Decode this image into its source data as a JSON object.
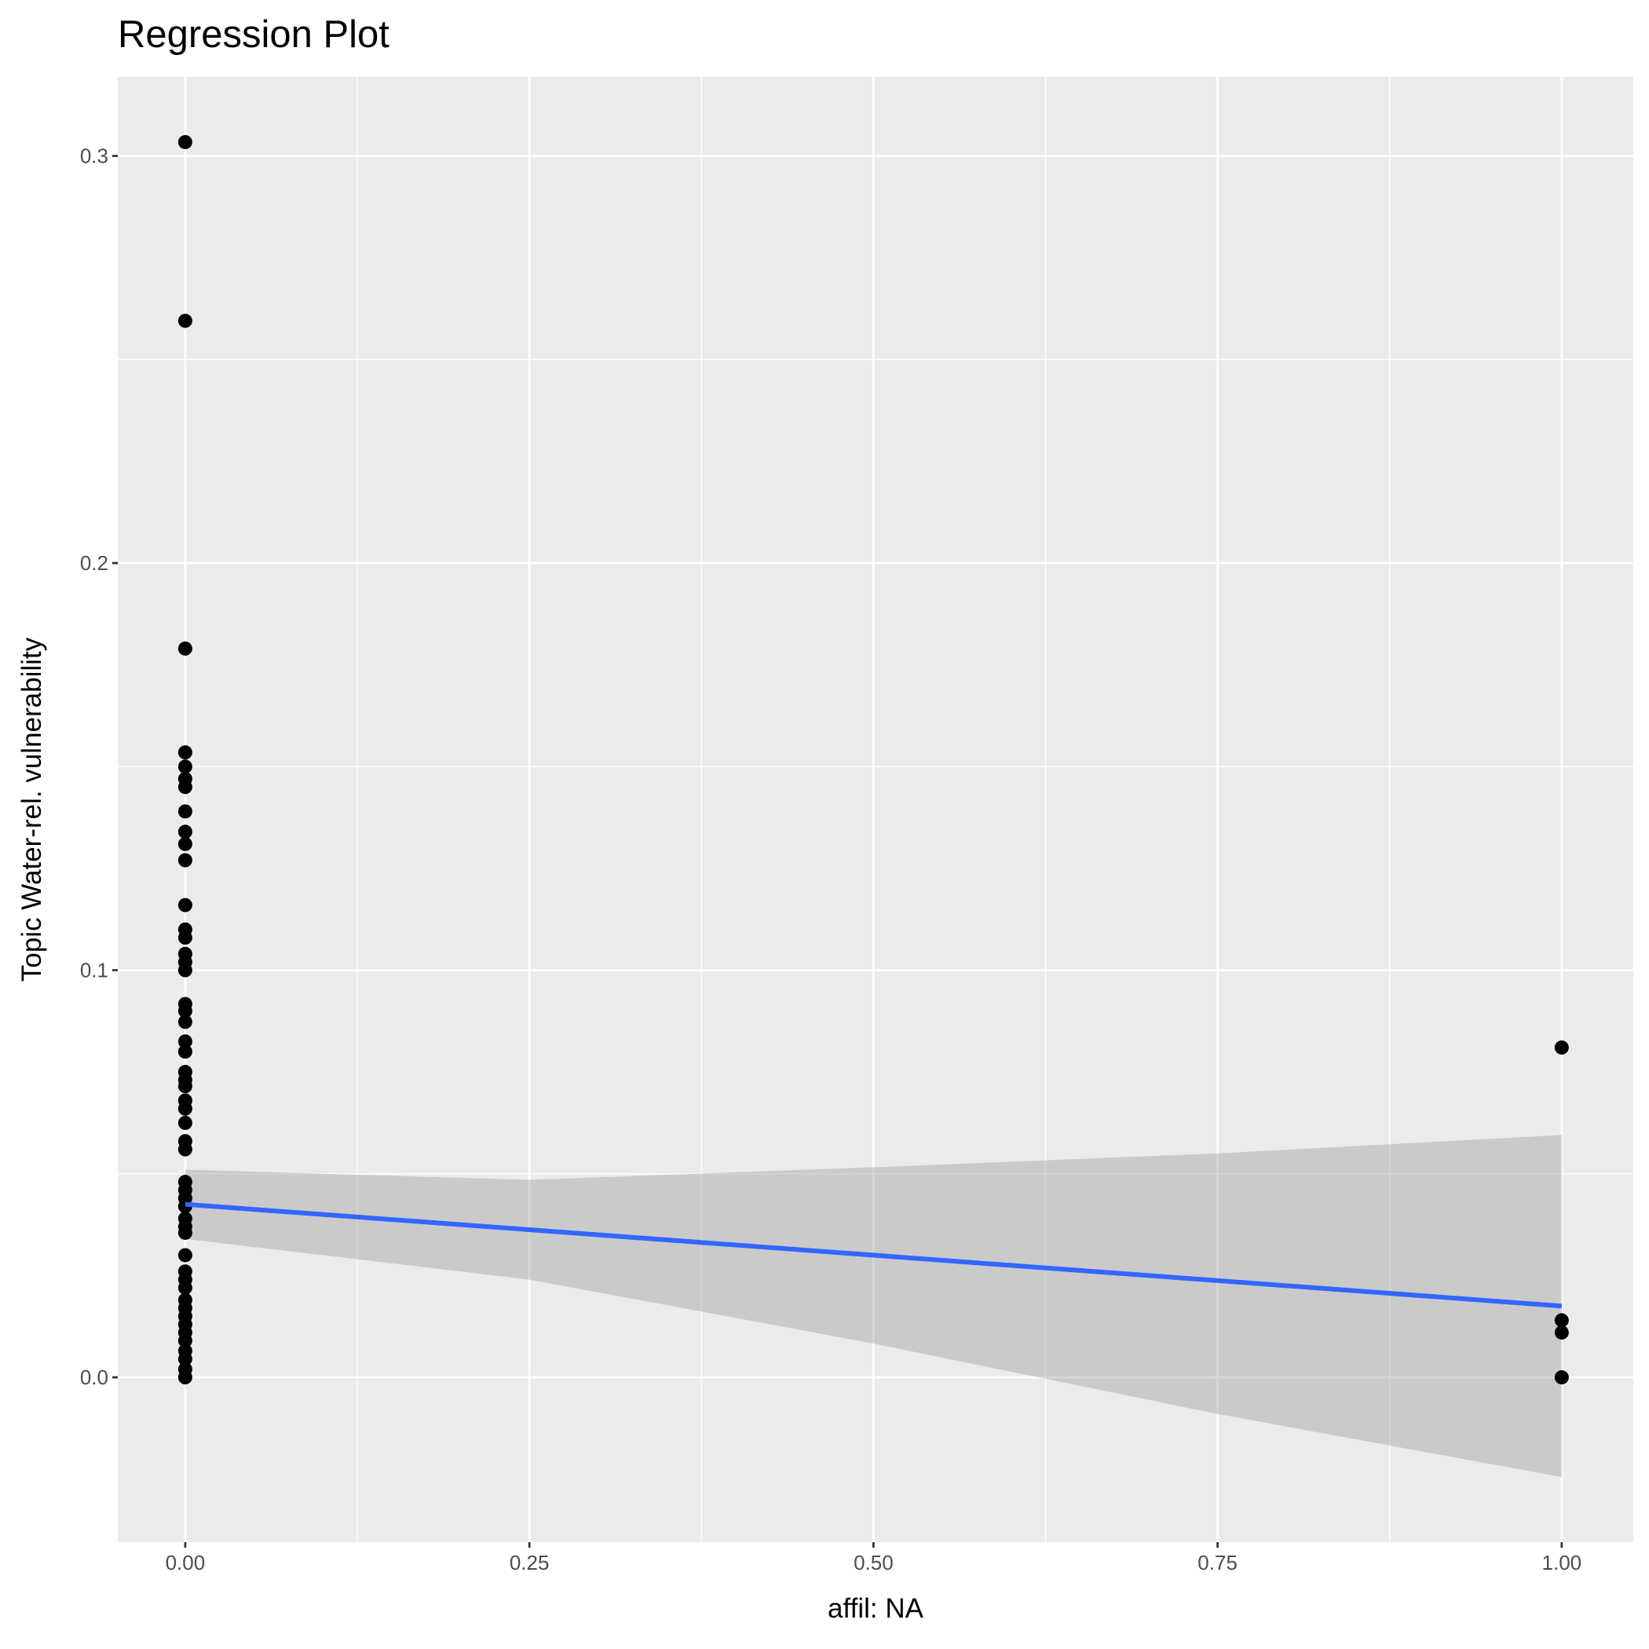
{
  "chart_data": {
    "type": "scatter",
    "title": "Regression Plot",
    "xlabel": "affil: NA",
    "ylabel": "Topic Water-rel. vulnerability",
    "xlim": [
      -0.049,
      1.052
    ],
    "ylim": [
      -0.0405,
      0.3194
    ],
    "x_ticks": [
      0,
      0.25,
      0.5,
      0.75,
      1
    ],
    "x_tick_labels": [
      "0.00",
      "0.25",
      "0.50",
      "0.75",
      "1.00"
    ],
    "y_ticks": [
      0,
      0.1,
      0.2,
      0.3
    ],
    "y_tick_labels": [
      "0.0",
      "0.1",
      "0.2",
      "0.3"
    ],
    "grid": true,
    "background": "#EBEBEB",
    "point_color": "#000000",
    "line_color": "#3366FF",
    "ribbon_color": "#C8C8C8",
    "points": {
      "x0": [
        0.3034,
        0.2595,
        0.179,
        0.1535,
        0.15,
        0.147,
        0.145,
        0.139,
        0.134,
        0.131,
        0.127,
        0.116,
        0.11,
        0.108,
        0.104,
        0.102,
        0.1,
        0.0917,
        0.09,
        0.0873,
        0.0825,
        0.08,
        0.075,
        0.073,
        0.0715,
        0.068,
        0.066,
        0.0625,
        0.058,
        0.056,
        0.048,
        0.046,
        0.044,
        0.042,
        0.039,
        0.037,
        0.0355,
        0.03,
        0.026,
        0.024,
        0.022,
        0.019,
        0.017,
        0.015,
        0.013,
        0.011,
        0.009,
        0.0065,
        0.0045,
        0.002,
        0.0
      ],
      "x1": [
        0.081,
        0.014,
        0.011,
        0.0
      ]
    },
    "fit": {
      "x": [
        0,
        1
      ],
      "y": [
        0.0425,
        0.0175
      ]
    },
    "confidence_band": {
      "x": [
        0,
        0.25,
        0.5,
        0.75,
        1
      ],
      "upper": [
        0.051,
        0.0485,
        0.0516,
        0.055,
        0.0595
      ],
      "lower": [
        0.034,
        0.024,
        0.0083,
        -0.009,
        -0.0245
      ]
    }
  }
}
